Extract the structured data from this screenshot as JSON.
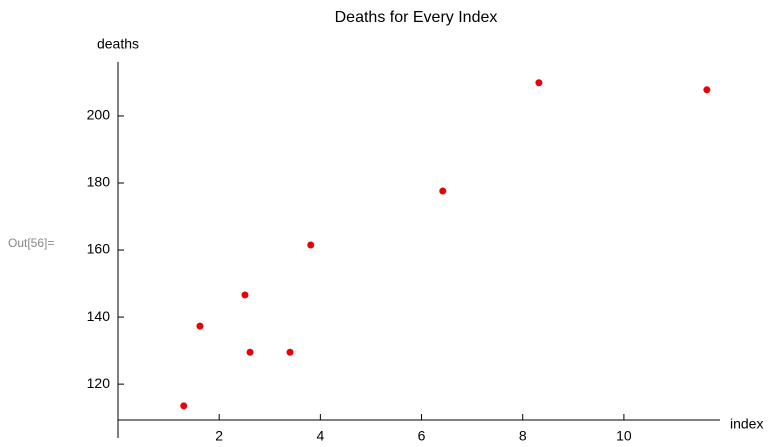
{
  "prompt_label": "Out[56]=",
  "chart_data": {
    "type": "scatter",
    "title": "Deaths for Every Index",
    "x_label": "index",
    "y_label": "deaths",
    "series": [
      {
        "color": "#e8000b",
        "x": [
          1.3,
          1.62,
          2.51,
          2.61,
          3.4,
          3.81,
          6.42,
          8.32,
          11.64
        ],
        "values": [
          113.5,
          137.3,
          146.6,
          129.5,
          129.5,
          161.5,
          177.6,
          209.9,
          207.8
        ]
      }
    ],
    "xlim": [
      0,
      11.86
    ],
    "xticks": [
      2,
      4,
      6,
      8,
      10
    ],
    "ylim": [
      109.3,
      215.2
    ],
    "yticks": [
      120,
      140,
      160,
      180,
      200
    ]
  }
}
